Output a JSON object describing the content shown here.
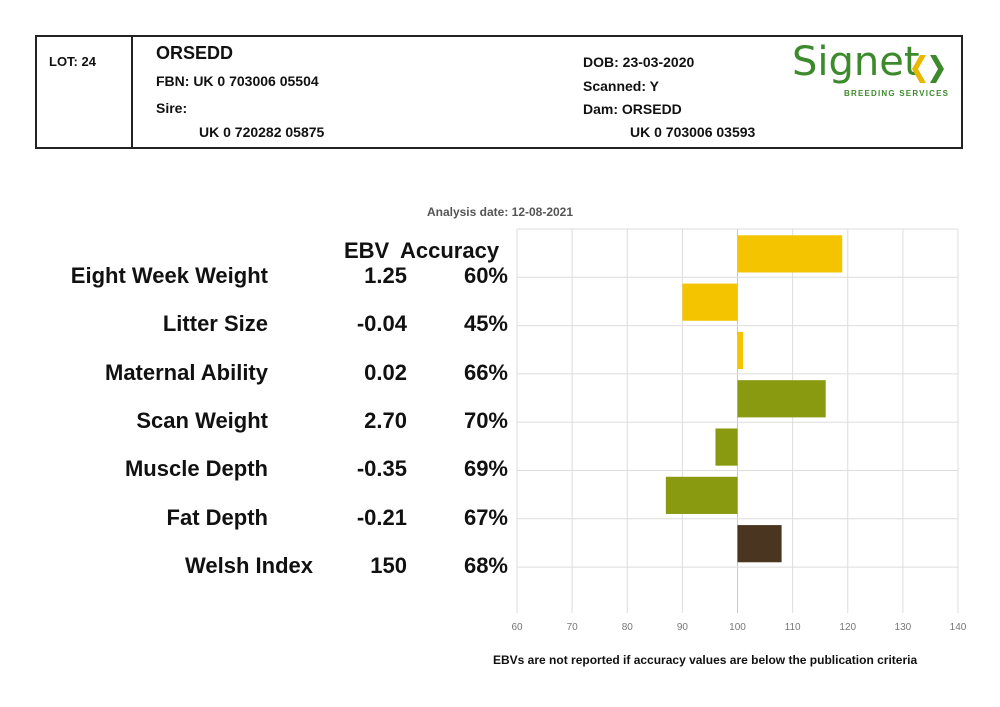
{
  "header": {
    "lot": "LOT: 24",
    "name": "ORSEDD",
    "fbn": "FBN: UK 0 703006 05504",
    "sire_label": "Sire:",
    "sire_id": "UK 0 720282 05875",
    "dob": "DOB: 23-03-2020",
    "scanned": "Scanned: Y",
    "dam": "Dam: ORSEDD",
    "dam_id": "UK 0 703006 03593"
  },
  "logo": {
    "word": "Signet",
    "sub": "BREEDING SERVICES",
    "color": "#3d8a2d"
  },
  "analysis_date": "Analysis date: 12-08-2021",
  "columns": {
    "ebv": "EBV",
    "accuracy": "Accuracy"
  },
  "colors": {
    "gold": "#f5c400",
    "green": "#8a9a10",
    "brown": "#4a3520",
    "grid": "#dddddd"
  },
  "chart_data": {
    "type": "bar",
    "orientation": "horizontal",
    "baseline": 100,
    "xlim": [
      60,
      140
    ],
    "x_ticks": [
      "60",
      "70",
      "80",
      "90",
      "100",
      "110",
      "120",
      "130",
      "140"
    ],
    "grid": true,
    "rows": [
      {
        "trait": "Eight Week Weight",
        "ebv": "1.25",
        "accuracy": "60%",
        "value": 119,
        "color": "gold"
      },
      {
        "trait": "Litter Size",
        "ebv": "-0.04",
        "accuracy": "45%",
        "value": 90,
        "color": "gold"
      },
      {
        "trait": "Maternal Ability",
        "ebv": "0.02",
        "accuracy": "66%",
        "value": 101,
        "color": "gold"
      },
      {
        "trait": "Scan Weight",
        "ebv": "2.70",
        "accuracy": "70%",
        "value": 116,
        "color": "green"
      },
      {
        "trait": "Muscle Depth",
        "ebv": "-0.35",
        "accuracy": "69%",
        "value": 96,
        "color": "green"
      },
      {
        "trait": "Fat Depth",
        "ebv": "-0.21",
        "accuracy": "67%",
        "value": 87,
        "color": "green"
      },
      {
        "trait": "Welsh Index",
        "ebv": "150",
        "accuracy": "68%",
        "value": 108,
        "color": "brown"
      }
    ]
  },
  "footnote": "EBVs are not reported if accuracy values are below the publication criteria"
}
